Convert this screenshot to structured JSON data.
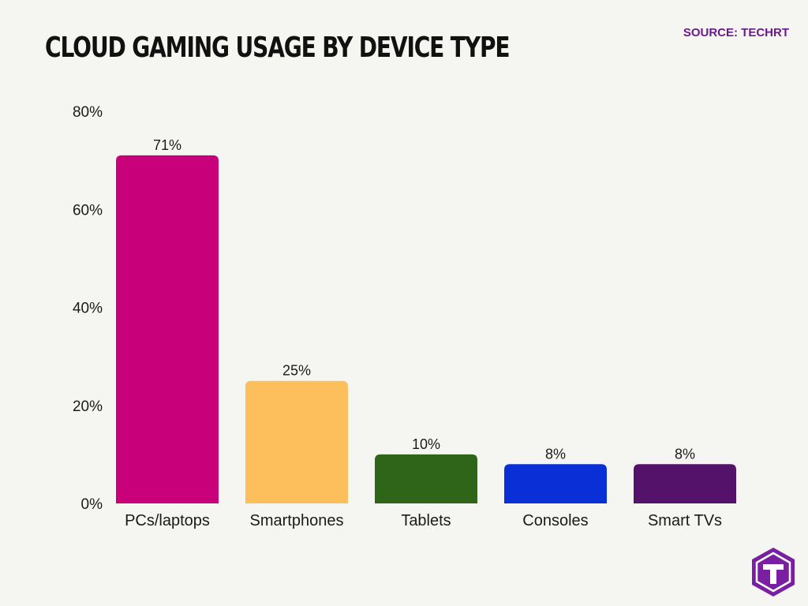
{
  "header": {
    "title": "CLOUD GAMING USAGE BY DEVICE TYPE",
    "source": "SOURCE: TECHRT"
  },
  "brand": {
    "logo_icon": "techrt-hexagon-t-logo",
    "logo_color": "#7b1fa2"
  },
  "chart_data": {
    "type": "bar",
    "title": "CLOUD GAMING USAGE BY DEVICE TYPE",
    "xlabel": "",
    "ylabel": "",
    "categories": [
      "PCs/laptops",
      "Smartphones",
      "Tablets",
      "Consoles",
      "Smart TVs"
    ],
    "values": [
      71,
      25,
      10,
      8,
      8
    ],
    "value_labels": [
      "71%",
      "25%",
      "10%",
      "8%",
      "8%"
    ],
    "colors": [
      "#c8007a",
      "#fdbf5c",
      "#2e6518",
      "#0b2fd6",
      "#54126a"
    ],
    "ylim": [
      0,
      80
    ],
    "yticks": [
      0,
      20,
      40,
      60,
      80
    ],
    "ytick_labels": [
      "0%",
      "20%",
      "40%",
      "60%",
      "80%"
    ],
    "grid": false,
    "legend": "none"
  }
}
